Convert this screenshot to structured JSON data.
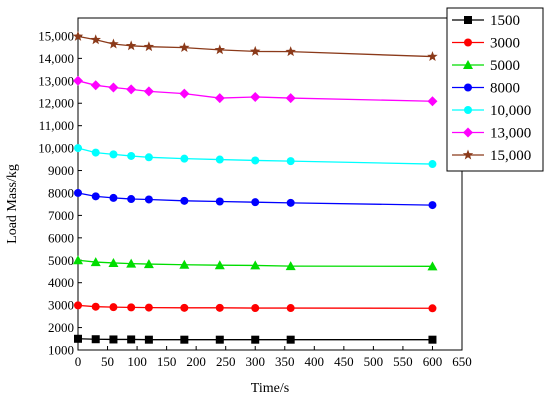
{
  "chart_data": {
    "type": "line",
    "title": "",
    "xlabel": "Time/s",
    "ylabel": "Load Mass/kg",
    "xlim": [
      0,
      650
    ],
    "ylim": [
      1000,
      15800
    ],
    "xticks": [
      0,
      50,
      100,
      150,
      200,
      250,
      300,
      350,
      400,
      450,
      500,
      550,
      600,
      650
    ],
    "xtick_labels": [
      "0",
      "50",
      "100",
      "150",
      "200",
      "250",
      "300",
      "350",
      "400",
      "450",
      "500",
      "550",
      "600",
      "650"
    ],
    "yticks": [
      1000,
      2000,
      3000,
      4000,
      5000,
      6000,
      7000,
      8000,
      9000,
      10000,
      11000,
      12000,
      13000,
      14000,
      15000
    ],
    "ytick_labels": [
      "1000",
      "2000",
      "3000",
      "4000",
      "5000",
      "6000",
      "7000",
      "8000",
      "9000",
      "10,000",
      "11,000",
      "12,000",
      "13,000",
      "14,000",
      "15,000"
    ],
    "grid": false,
    "legend_position": "top-right",
    "x": [
      0,
      30,
      60,
      90,
      120,
      180,
      240,
      300,
      360,
      600
    ],
    "series": [
      {
        "name": "1500",
        "color": "#000000",
        "marker": "square",
        "values": [
          1500,
          1480,
          1470,
          1470,
          1460,
          1460,
          1460,
          1460,
          1460,
          1460
        ]
      },
      {
        "name": "3000",
        "color": "#ff0000",
        "marker": "circle",
        "values": [
          2990,
          2930,
          2910,
          2900,
          2890,
          2880,
          2880,
          2870,
          2870,
          2860
        ]
      },
      {
        "name": "5000",
        "color": "#00dd00",
        "marker": "triangle",
        "values": [
          5000,
          4920,
          4880,
          4850,
          4830,
          4800,
          4780,
          4770,
          4740,
          4730
        ]
      },
      {
        "name": "8000",
        "color": "#0000ff",
        "marker": "circle",
        "values": [
          8000,
          7850,
          7780,
          7730,
          7710,
          7650,
          7620,
          7590,
          7560,
          7460
        ]
      },
      {
        "name": "10,000",
        "color": "#00ffff",
        "marker": "circle",
        "values": [
          10000,
          9800,
          9720,
          9650,
          9590,
          9530,
          9490,
          9450,
          9420,
          9290
        ]
      },
      {
        "name": "13,000",
        "color": "#ff00ff",
        "marker": "diamond",
        "values": [
          13000,
          12800,
          12700,
          12620,
          12530,
          12430,
          12230,
          12280,
          12230,
          12090
        ]
      },
      {
        "name": "15,000",
        "color": "#8b3a1a",
        "marker": "star",
        "values": [
          14980,
          14830,
          14640,
          14560,
          14520,
          14480,
          14380,
          14310,
          14300,
          14080
        ]
      }
    ]
  }
}
